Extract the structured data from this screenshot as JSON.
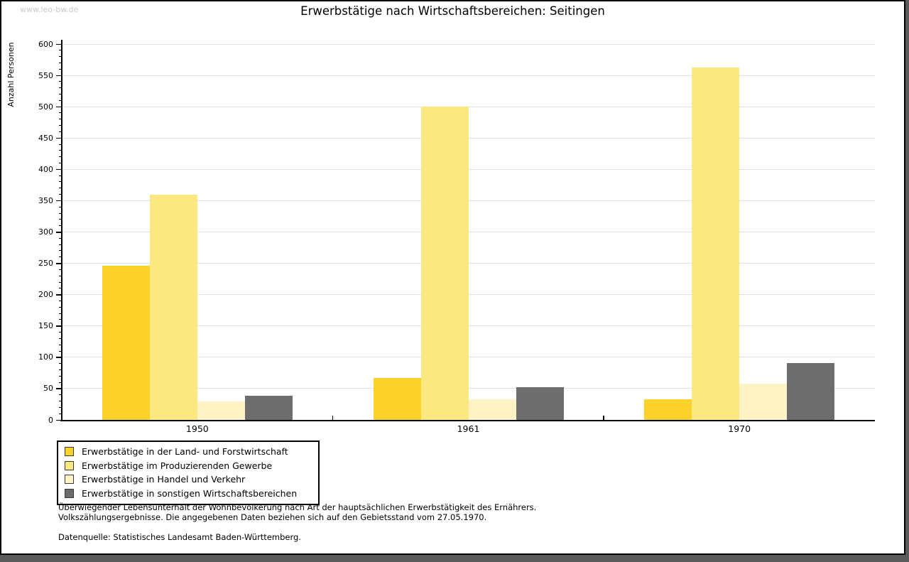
{
  "watermark": "www.leo-bw.de",
  "title": "Erwerbstätige nach Wirtschaftsbereichen: Seitingen",
  "chart_data": {
    "type": "bar",
    "title": "Erwerbstätige nach Wirtschaftsbereichen: Seitingen",
    "xlabel": "",
    "ylabel": "Anzahl Personen",
    "ylim": [
      0,
      600
    ],
    "ytick_major_step": 50,
    "ytick_minor_step": 10,
    "grid": true,
    "legend_position": "bottom-left",
    "categories": [
      "1950",
      "1961",
      "1970"
    ],
    "series": [
      {
        "name": "Erwerbstätige in der Land- und Forstwirtschaft",
        "color": "#fcd12a",
        "values": [
          246,
          67,
          33
        ]
      },
      {
        "name": "Erwerbstätige im Produzierenden Gewerbe",
        "color": "#fce881",
        "values": [
          360,
          500,
          563
        ]
      },
      {
        "name": "Erwerbstätige in Handel und Verkehr",
        "color": "#fdf3c5",
        "values": [
          29,
          33,
          58
        ]
      },
      {
        "name": "Erwerbstätige in sonstigen Wirtschaftsbereichen",
        "color": "#6d6d6d",
        "values": [
          38,
          52,
          91
        ]
      }
    ]
  },
  "footer": {
    "line1": "Überwiegender Lebensunterhalt der Wohnbevölkerung nach Art der hauptsächlichen Erwerbstätigkeit des Ernährers.",
    "line2": "Volkszählungsergebnisse. Die angegebenen Daten beziehen sich auf den Gebietsstand vom 27.05.1970.",
    "source": "Datenquelle: Statistisches Landesamt Baden-Württemberg."
  }
}
